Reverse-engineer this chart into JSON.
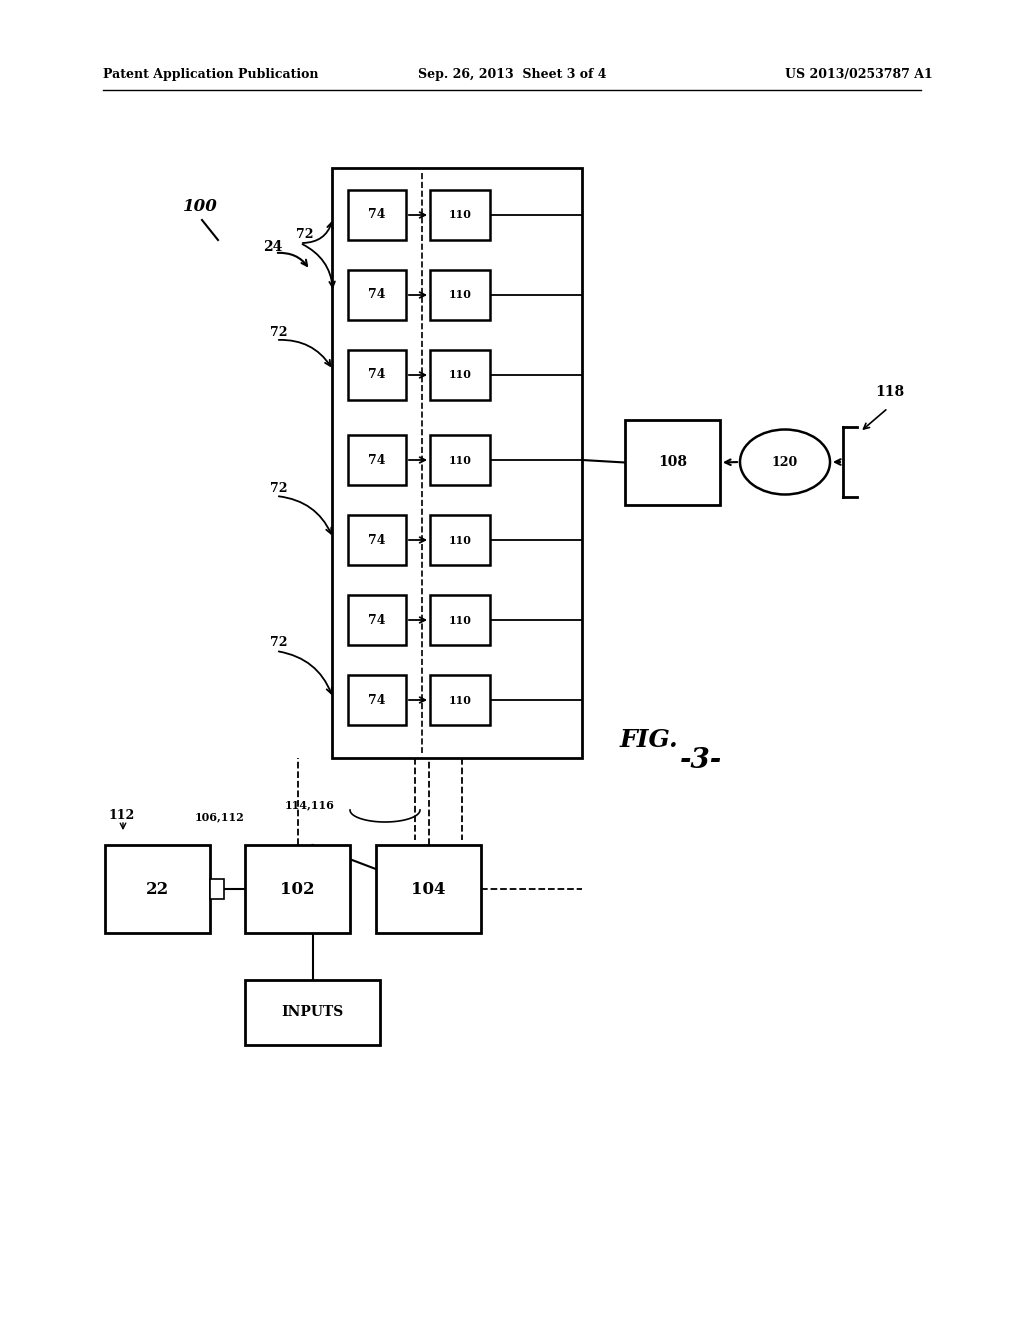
{
  "bg_color": "#ffffff",
  "header_left": "Patent Application Publication",
  "header_center": "Sep. 26, 2013  Sheet 3 of 4",
  "header_right": "US 2013/0253787 A1",
  "fig_label": "FIG.",
  "fig_label2": "-3-"
}
